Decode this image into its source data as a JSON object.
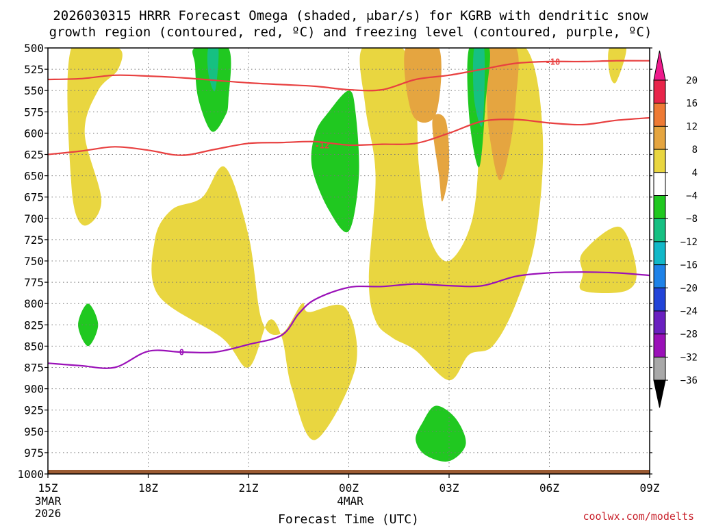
{
  "chart_data": {
    "type": "heatmap",
    "title_line1": "2026030315 HRRR Forecast Omega (shaded, μbar/s) for KGRB with dendritic snow",
    "title_line2": "growth region (contoured, red, ºC) and freezing level (contoured, purple, ºC)",
    "xlabel": "Forecast Time (UTC)",
    "credit": "coolwx.com/modelts",
    "x_range_hours": [
      0,
      18
    ],
    "y_range_mb": [
      500,
      1000
    ],
    "y_ticks": [
      "500",
      "525",
      "550",
      "575",
      "600",
      "625",
      "650",
      "675",
      "700",
      "725",
      "750",
      "775",
      "800",
      "825",
      "850",
      "875",
      "900",
      "925",
      "950",
      "975",
      "1000"
    ],
    "x_ticks": [
      {
        "h": 0,
        "label": "15Z",
        "sub1": "3MAR",
        "sub2": "2026"
      },
      {
        "h": 3,
        "label": "18Z",
        "sub1": "",
        "sub2": ""
      },
      {
        "h": 6,
        "label": "21Z",
        "sub1": "",
        "sub2": ""
      },
      {
        "h": 9,
        "label": "00Z",
        "sub1": "4MAR",
        "sub2": ""
      },
      {
        "h": 12,
        "label": "03Z",
        "sub1": "",
        "sub2": ""
      },
      {
        "h": 15,
        "label": "06Z",
        "sub1": "",
        "sub2": ""
      },
      {
        "h": 18,
        "label": "09Z",
        "sub1": "",
        "sub2": ""
      }
    ],
    "colorbar": {
      "labels": [
        "20",
        "16",
        "12",
        "8",
        "4",
        "−4",
        "−8",
        "−12",
        "−16",
        "−20",
        "−24",
        "−28",
        "−32",
        "−36"
      ],
      "colors": [
        "#e8254a",
        "#ee7a35",
        "#e5a540",
        "#e9d640",
        "#ffffff",
        "#20c820",
        "#16c082",
        "#12b8c8",
        "#1e82e8",
        "#2244d8",
        "#6a20c0",
        "#9a10b8",
        "#a8a8a8"
      ],
      "top_color": "#ee1a8c",
      "bottom_color": "#000000"
    },
    "contours": [
      {
        "name": "dendritic-18",
        "label": "-18",
        "color": "#e84040",
        "points": [
          [
            0,
            537
          ],
          [
            1,
            536
          ],
          [
            2,
            532
          ],
          [
            3,
            533
          ],
          [
            4,
            535
          ],
          [
            5,
            538
          ],
          [
            6,
            541
          ],
          [
            7,
            543
          ],
          [
            8,
            545
          ],
          [
            9,
            549
          ],
          [
            10,
            549
          ],
          [
            11,
            537
          ],
          [
            12,
            532
          ],
          [
            13,
            525
          ],
          [
            14,
            518
          ],
          [
            15,
            516
          ],
          [
            16,
            516
          ],
          [
            17,
            515
          ],
          [
            18,
            515
          ]
        ],
        "label_at": [
          15.1,
          516
        ]
      },
      {
        "name": "dendritic-12",
        "label": "-12",
        "color": "#e84040",
        "points": [
          [
            0,
            625
          ],
          [
            1,
            621
          ],
          [
            2,
            616
          ],
          [
            3,
            620
          ],
          [
            4,
            626
          ],
          [
            5,
            619
          ],
          [
            6,
            612
          ],
          [
            7,
            611
          ],
          [
            8,
            610
          ],
          [
            9,
            614
          ],
          [
            10,
            613
          ],
          [
            11,
            612
          ],
          [
            12,
            600
          ],
          [
            13,
            586
          ],
          [
            14,
            584
          ],
          [
            15,
            588
          ],
          [
            16,
            590
          ],
          [
            17,
            585
          ],
          [
            18,
            582
          ]
        ],
        "label_at": [
          8.2,
          614
        ]
      },
      {
        "name": "freezing-level-0",
        "label": "0",
        "color": "#9a10b8",
        "points": [
          [
            0,
            870
          ],
          [
            1,
            873
          ],
          [
            2,
            875
          ],
          [
            3,
            856
          ],
          [
            4,
            857
          ],
          [
            5,
            857
          ],
          [
            6,
            848
          ],
          [
            7,
            837
          ],
          [
            7.5,
            812
          ],
          [
            8,
            795
          ],
          [
            9,
            781
          ],
          [
            10,
            780
          ],
          [
            11,
            777
          ],
          [
            12,
            779
          ],
          [
            13,
            779
          ],
          [
            14,
            768
          ],
          [
            15,
            764
          ],
          [
            16,
            763
          ],
          [
            17,
            764
          ],
          [
            18,
            767
          ]
        ],
        "label_at": [
          4.0,
          857
        ]
      }
    ],
    "regions": [
      {
        "name": "omega-4to8-a",
        "color": "#e9d640",
        "points": [
          [
            0.7,
            500
          ],
          [
            2.1,
            500
          ],
          [
            2.1,
            525
          ],
          [
            1.5,
            550
          ],
          [
            1.1,
            600
          ],
          [
            1.6,
            680
          ],
          [
            1.05,
            708
          ],
          [
            0.7,
            660
          ]
        ]
      },
      {
        "name": "omega-4to8-b",
        "color": "#e9d640",
        "points": [
          [
            3.2,
            725
          ],
          [
            3.7,
            690
          ],
          [
            4.6,
            676
          ],
          [
            5.3,
            640
          ],
          [
            6.0,
            720
          ],
          [
            6.4,
            820
          ],
          [
            7.0,
            835
          ],
          [
            7.6,
            800
          ],
          [
            7.8,
            810
          ],
          [
            8.9,
            805
          ],
          [
            9.2,
            875
          ],
          [
            8.0,
            960
          ],
          [
            7.3,
            900
          ],
          [
            7.0,
            840
          ],
          [
            6.6,
            820
          ],
          [
            6.0,
            875
          ],
          [
            5.2,
            840
          ],
          [
            3.3,
            790
          ]
        ]
      },
      {
        "name": "omega-4to8-c",
        "color": "#e9d640",
        "points": [
          [
            9.4,
            500
          ],
          [
            10.6,
            500
          ],
          [
            11.0,
            560
          ],
          [
            11.1,
            640
          ],
          [
            11.4,
            720
          ],
          [
            12.0,
            750
          ],
          [
            12.7,
            700
          ],
          [
            12.9,
            600
          ],
          [
            12.8,
            500
          ],
          [
            14.3,
            500
          ],
          [
            14.8,
            600
          ],
          [
            14.6,
            720
          ],
          [
            14.0,
            800
          ],
          [
            13.3,
            850
          ],
          [
            12.6,
            860
          ],
          [
            12.0,
            890
          ],
          [
            11.0,
            855
          ],
          [
            10.3,
            840
          ],
          [
            9.8,
            820
          ],
          [
            9.6,
            770
          ],
          [
            9.8,
            650
          ],
          [
            9.5,
            570
          ]
        ]
      },
      {
        "name": "omega-4to8-d",
        "color": "#e9d640",
        "points": [
          [
            16.8,
            500
          ],
          [
            17.3,
            500
          ],
          [
            17.0,
            540
          ],
          [
            16.8,
            530
          ]
        ]
      },
      {
        "name": "omega-4to8-e",
        "color": "#e9d640",
        "points": [
          [
            16.0,
            765
          ],
          [
            16.0,
            740
          ],
          [
            17.1,
            710
          ],
          [
            17.6,
            760
          ],
          [
            17.3,
            785
          ],
          [
            16.0,
            785
          ]
        ]
      },
      {
        "name": "omega-8to12-a",
        "color": "#e5a540",
        "points": [
          [
            10.7,
            500
          ],
          [
            11.7,
            500
          ],
          [
            11.6,
            578
          ],
          [
            10.9,
            578
          ]
        ]
      },
      {
        "name": "omega-8to12-b",
        "color": "#e5a540",
        "points": [
          [
            11.5,
            585
          ],
          [
            11.9,
            585
          ],
          [
            12.0,
            640
          ],
          [
            11.8,
            680
          ],
          [
            11.7,
            650
          ]
        ]
      },
      {
        "name": "omega-8to12-c",
        "color": "#e5a540",
        "points": [
          [
            13.0,
            500
          ],
          [
            14.0,
            500
          ],
          [
            14.0,
            560
          ],
          [
            13.8,
            620
          ],
          [
            13.5,
            655
          ],
          [
            13.2,
            600
          ],
          [
            13.1,
            540
          ]
        ]
      },
      {
        "name": "omega-neg4to8-a",
        "color": "#20c820",
        "points": [
          [
            4.4,
            500
          ],
          [
            5.4,
            500
          ],
          [
            5.4,
            560
          ],
          [
            5.3,
            580
          ],
          [
            4.9,
            598
          ],
          [
            4.5,
            560
          ],
          [
            4.4,
            520
          ]
        ]
      },
      {
        "name": "omega-neg4to8-b",
        "color": "#20c820",
        "points": [
          [
            9.0,
            550
          ],
          [
            9.2,
            575
          ],
          [
            9.3,
            650
          ],
          [
            9.0,
            715
          ],
          [
            8.4,
            690
          ],
          [
            7.9,
            640
          ],
          [
            8.0,
            600
          ],
          [
            8.4,
            575
          ]
        ]
      },
      {
        "name": "omega-neg4to8-c",
        "color": "#20c820",
        "points": [
          [
            11.2,
            940
          ],
          [
            11.6,
            920
          ],
          [
            12.2,
            935
          ],
          [
            12.5,
            965
          ],
          [
            12.0,
            985
          ],
          [
            11.3,
            978
          ],
          [
            11.0,
            960
          ]
        ]
      },
      {
        "name": "omega-neg4to8-d",
        "color": "#20c820",
        "points": [
          [
            12.6,
            500
          ],
          [
            13.2,
            500
          ],
          [
            13.1,
            560
          ],
          [
            12.9,
            640
          ],
          [
            12.6,
            580
          ]
        ]
      },
      {
        "name": "omega-neg4to8-e",
        "color": "#20c820",
        "points": [
          [
            1.2,
            800
          ],
          [
            1.5,
            825
          ],
          [
            1.2,
            850
          ],
          [
            0.9,
            825
          ]
        ]
      },
      {
        "name": "omega-neg8to12-a",
        "color": "#16c082",
        "points": [
          [
            4.8,
            500
          ],
          [
            5.1,
            500
          ],
          [
            5.0,
            550
          ],
          [
            4.8,
            530
          ]
        ]
      },
      {
        "name": "omega-neg8to12-b",
        "color": "#16c082",
        "points": [
          [
            12.75,
            500
          ],
          [
            13.05,
            500
          ],
          [
            13.0,
            590
          ],
          [
            12.75,
            560
          ]
        ]
      }
    ]
  }
}
